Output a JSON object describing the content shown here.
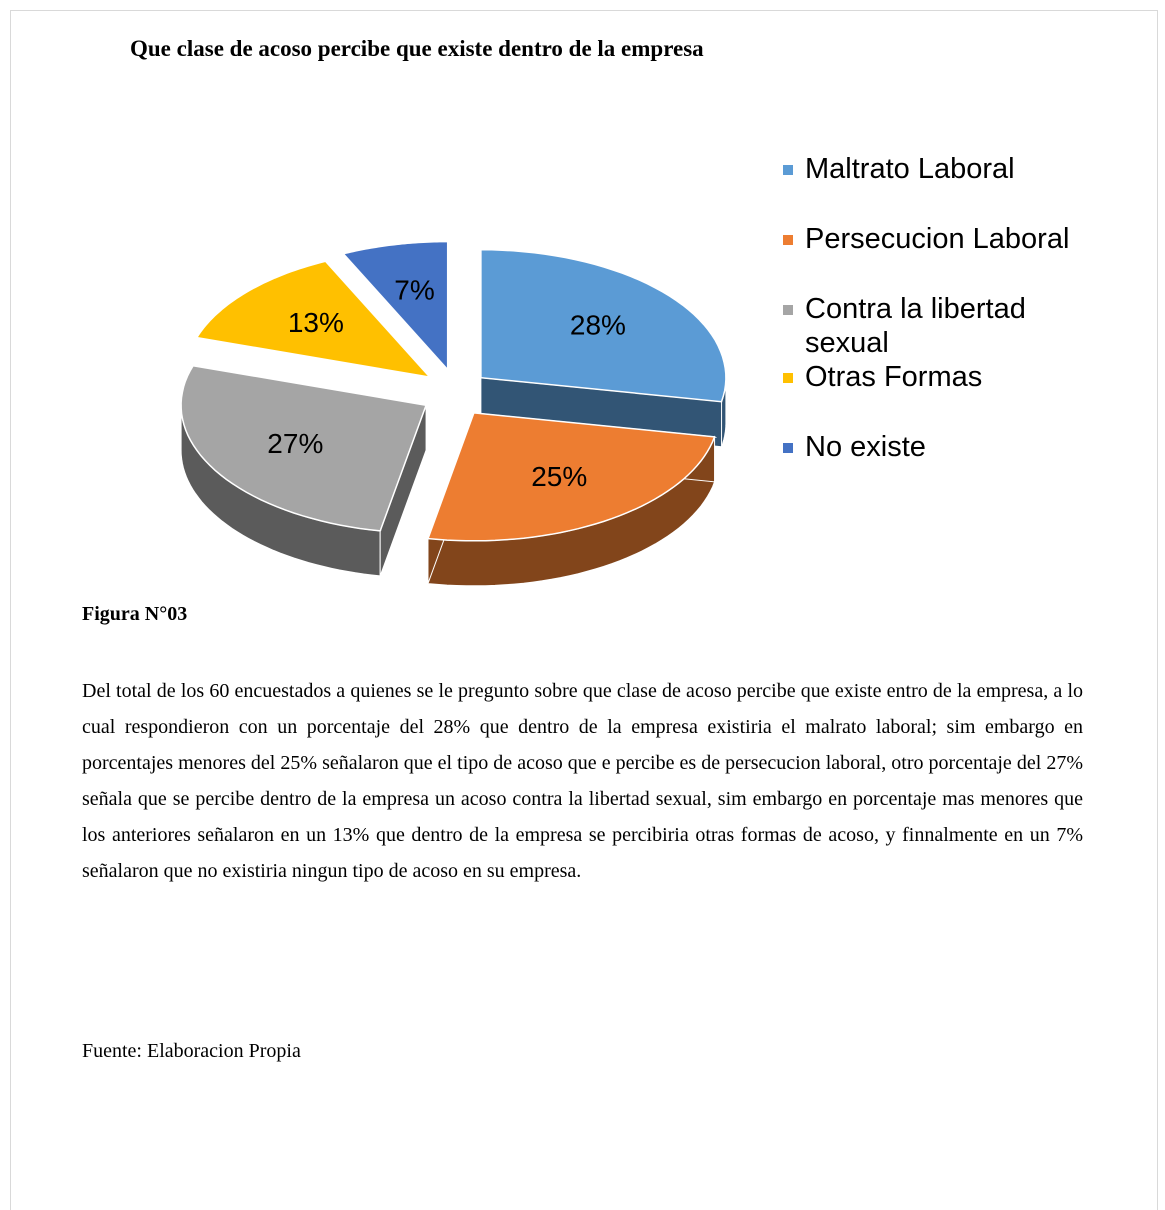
{
  "chart_data": {
    "type": "pie",
    "title": "Que clase de acoso percibe que existe dentro de la empresa",
    "categories": [
      "Maltrato Laboral",
      "Persecucion Laboral",
      "Contra la libertad sexual",
      "Otras Formas",
      "No existe"
    ],
    "values": [
      28,
      25,
      27,
      13,
      7
    ],
    "value_labels": [
      "28%",
      "25%",
      "27%",
      "13%",
      "7%"
    ],
    "colors": [
      "#5b9bd5",
      "#ed7d31",
      "#a5a5a5",
      "#ffc000",
      "#4472c4"
    ]
  },
  "caption": "Figura N°03",
  "paragraph": "Del total de los 60 encuestados a quienes se le pregunto sobre que clase de acoso percibe que existe entro de la empresa, a lo cual respondieron con un porcentaje del 28% que dentro de la empresa existiria el malrato laboral; sim embargo en porcentajes menores del 25% señalaron que el tipo de acoso que e percibe es de persecucion laboral, otro porcentaje del 27% señala que se percibe dentro de la empresa un acoso contra la libertad sexual, sim embargo en porcentaje mas menores que los anteriores señalaron en un 13% que dentro de la empresa se percibiria otras formas de acoso, y finnalmente en un 7% señalaron que no existiria ningun tipo de acoso en su empresa.",
  "source": "Fuente: Elaboracion Propia"
}
